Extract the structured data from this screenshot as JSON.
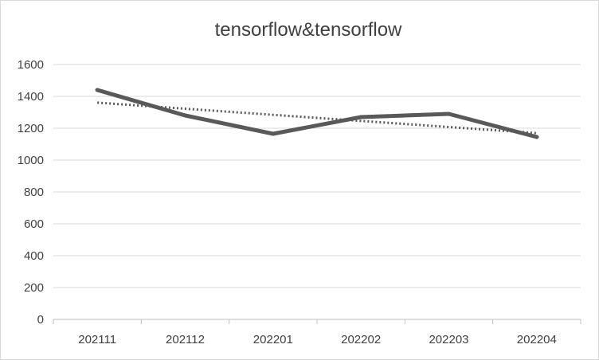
{
  "chart_data": {
    "type": "line",
    "title": "tensorflow&tensorflow",
    "xlabel": "",
    "ylabel": "",
    "categories": [
      "202111",
      "202112",
      "202201",
      "202202",
      "202203",
      "202204"
    ],
    "series": [
      {
        "values": [
          1440,
          1280,
          1165,
          1270,
          1290,
          1145
        ],
        "color": "#595959",
        "style": "solid"
      }
    ],
    "trendline": {
      "type": "linear",
      "color": "#595959",
      "style": "dotted"
    },
    "ylim": [
      0,
      1600
    ],
    "yticks": [
      0,
      200,
      400,
      600,
      800,
      1000,
      1200,
      1400,
      1600
    ],
    "grid": true,
    "legend": "none"
  }
}
